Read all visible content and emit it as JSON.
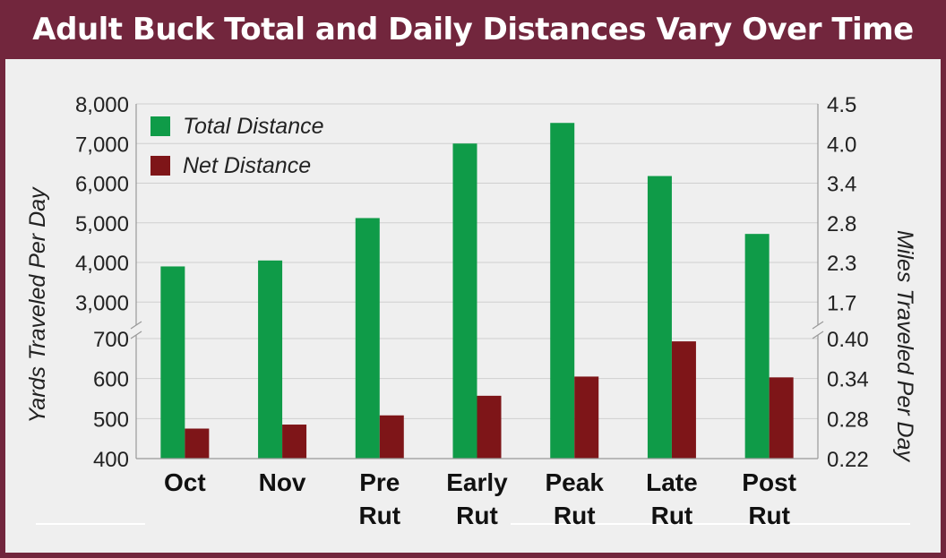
{
  "chart_data": {
    "type": "bar",
    "title": "Adult Buck Total and Daily Distances Vary Over Time",
    "categories": [
      [
        "Oct"
      ],
      [
        "Nov"
      ],
      [
        "Pre",
        "Rut"
      ],
      [
        "Early",
        "Rut"
      ],
      [
        "Peak",
        "Rut"
      ],
      [
        "Late",
        "Rut"
      ],
      [
        "Post",
        "Rut"
      ]
    ],
    "series": [
      {
        "name": "Total Distance",
        "color": "#0f9b48",
        "axis": "upper",
        "values": [
          3900,
          4050,
          5120,
          7000,
          7520,
          6180,
          4720
        ]
      },
      {
        "name": "Net Distance",
        "color": "#7e1518",
        "axis": "lower",
        "values": [
          475,
          485,
          508,
          557,
          605,
          693,
          603
        ]
      }
    ],
    "ylabel": "Yards Traveled Per Day",
    "y2label": "Miles Traveled Per Day",
    "y_axis_break": true,
    "upper_ylim": [
      2600,
      8000
    ],
    "lower_ylim": [
      400,
      700
    ],
    "left_ticks_upper": [
      "8,000",
      "7,000",
      "6,000",
      "5,000",
      "4,000",
      "3,000"
    ],
    "left_ticks_lower": [
      "700",
      "600",
      "500",
      "400"
    ],
    "right_ticks_upper": [
      "4.5",
      "4.0",
      "3.4",
      "2.8",
      "2.3",
      "1.7"
    ],
    "right_ticks_lower": [
      "0.40",
      "0.34",
      "0.28",
      "0.22"
    ],
    "upper_tick_values": [
      8000,
      7000,
      6000,
      5000,
      4000,
      3000
    ],
    "lower_tick_values": [
      700,
      600,
      500,
      400
    ],
    "grid": true,
    "legend_position": "top-left"
  }
}
